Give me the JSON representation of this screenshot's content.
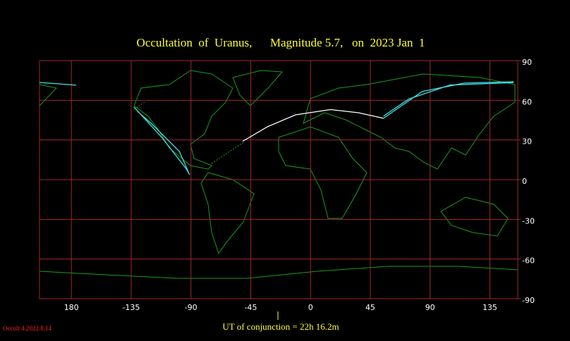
{
  "chart_data": {
    "type": "map",
    "title": "Occultation  of  Uranus,      Magnitude 5.7,   on  2023 Jan  1",
    "conjunction": "UT of conjunction = 22h 16.2m",
    "version": "Occult 4.2022.8.14",
    "xlim": [
      156,
      516
    ],
    "ylim": [
      -90,
      90
    ],
    "xticks": [
      180,
      -135,
      -90,
      -45,
      0,
      45,
      90,
      135
    ],
    "yticks": [
      90,
      60,
      30,
      0,
      -30,
      -60,
      -90
    ],
    "grid": true,
    "tracks": [
      {
        "color": "#ffffff",
        "lon": [
          -51,
          -32.5,
          -11.3,
          15,
          36,
          54.9
        ],
        "lat": [
          29,
          40,
          49,
          53,
          50.6,
          46.4
        ]
      },
      {
        "color": "#40e0e0",
        "lon": [
          54.9,
          84,
          115.7,
          152.8
        ],
        "lat": [
          46.4,
          66.6,
          73,
          74
        ]
      },
      {
        "color": "#40e0e0",
        "lon": [
          54.9,
          74,
          105,
          152.8
        ],
        "lat": [
          48,
          61,
          71.5,
          73.4
        ]
      },
      {
        "color": "#40e0e0",
        "lon": [
          156,
          -176.5
        ],
        "lat": [
          73.5,
          71.4
        ]
      },
      {
        "color": "#40e0e0",
        "lon": [
          -133,
          -112,
          -93.4,
          -91,
          -98.7,
          -120,
          -130.4
        ],
        "lat": [
          55,
          32,
          8,
          3.7,
          21.3,
          42.6,
          51.7
        ]
      }
    ]
  }
}
